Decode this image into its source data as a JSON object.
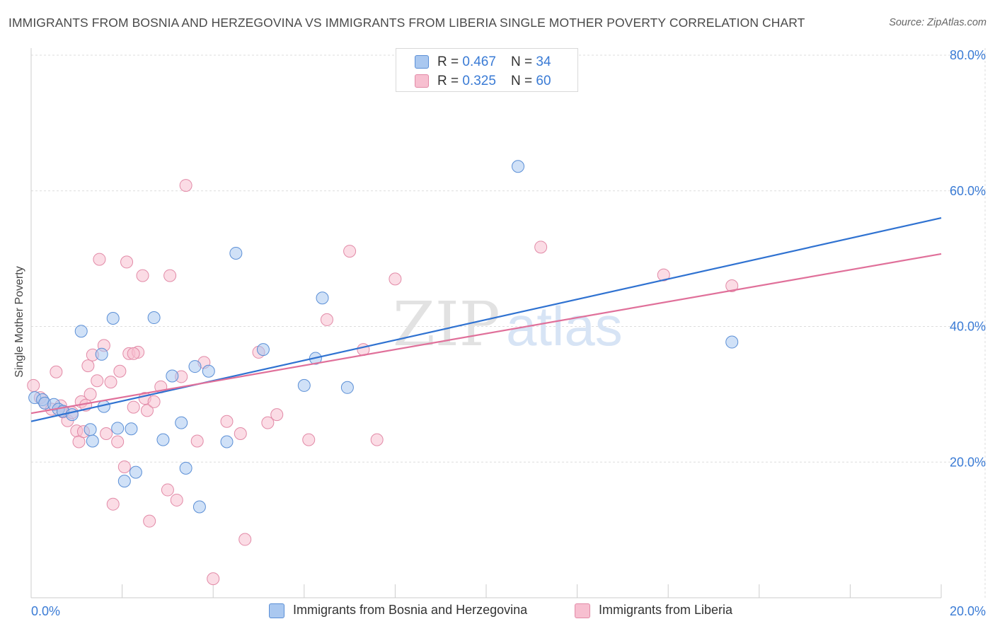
{
  "title": "IMMIGRANTS FROM BOSNIA AND HERZEGOVINA VS IMMIGRANTS FROM LIBERIA SINGLE MOTHER POVERTY CORRELATION CHART",
  "source": "Source: ZipAtlas.com",
  "watermark": {
    "part1": "ZIP",
    "part2": "atlas"
  },
  "legend": {
    "rows": [
      {
        "r_label": "R = ",
        "r_value": "0.467",
        "n_label": "N = ",
        "n_value": "34"
      },
      {
        "r_label": "R = ",
        "r_value": "0.325",
        "n_label": "N = ",
        "n_value": "60"
      }
    ]
  },
  "chart_data": {
    "type": "scatter",
    "title": "IMMIGRANTS FROM BOSNIA AND HERZEGOVINA VS IMMIGRANTS FROM LIBERIA SINGLE MOTHER POVERTY CORRELATION CHART",
    "ylabel": "Single Mother Poverty",
    "xlabel": "",
    "xlim": [
      0,
      20
    ],
    "ylim": [
      0,
      80
    ],
    "x_tick_labels": [
      "0.0%",
      "20.0%"
    ],
    "y_ticks": [
      20,
      40,
      60,
      80
    ],
    "y_tick_labels": [
      "20.0%",
      "40.0%",
      "60.0%",
      "80.0%"
    ],
    "colors": {
      "bosnia_fill": "#aac8f0",
      "bosnia_stroke": "#5b8fd6",
      "bosnia_line": "#2f72d1",
      "liberia_fill": "#f7bfd0",
      "liberia_stroke": "#e28aa7",
      "liberia_line": "#e0709a",
      "tick_label": "#3a7bd5",
      "grid": "#dddddd"
    },
    "series": [
      {
        "name": "Immigrants from Bosnia and Herzegovina",
        "R": 0.467,
        "N": 34,
        "trend": {
          "x": [
            0,
            20
          ],
          "y": [
            26.0,
            56.0
          ]
        },
        "points": [
          [
            0.08,
            29.5
          ],
          [
            0.25,
            29.2
          ],
          [
            0.3,
            28.7
          ],
          [
            0.5,
            28.5
          ],
          [
            0.6,
            27.8
          ],
          [
            0.7,
            27.5
          ],
          [
            0.9,
            27.0
          ],
          [
            1.1,
            39.3
          ],
          [
            1.3,
            24.8
          ],
          [
            1.35,
            23.1
          ],
          [
            1.6,
            28.2
          ],
          [
            1.8,
            41.2
          ],
          [
            1.9,
            25.0
          ],
          [
            2.05,
            17.2
          ],
          [
            2.2,
            24.9
          ],
          [
            2.3,
            18.5
          ],
          [
            2.7,
            41.3
          ],
          [
            2.9,
            23.3
          ],
          [
            3.1,
            32.7
          ],
          [
            3.3,
            25.8
          ],
          [
            3.4,
            19.1
          ],
          [
            3.6,
            34.1
          ],
          [
            3.7,
            13.4
          ],
          [
            3.9,
            33.4
          ],
          [
            4.3,
            23.0
          ],
          [
            4.5,
            50.8
          ],
          [
            5.1,
            36.6
          ],
          [
            6.0,
            31.3
          ],
          [
            6.25,
            35.3
          ],
          [
            6.4,
            44.2
          ],
          [
            6.95,
            31.0
          ],
          [
            10.7,
            63.6
          ],
          [
            15.4,
            37.7
          ],
          [
            1.55,
            35.9
          ]
        ]
      },
      {
        "name": "Immigrants from Liberia",
        "R": 0.325,
        "N": 60,
        "trend": {
          "x": [
            0,
            20
          ],
          "y": [
            27.2,
            50.7
          ]
        },
        "points": [
          [
            0.05,
            31.3
          ],
          [
            0.2,
            29.5
          ],
          [
            0.3,
            28.7
          ],
          [
            0.45,
            27.8
          ],
          [
            0.55,
            33.3
          ],
          [
            0.65,
            28.3
          ],
          [
            0.7,
            27.4
          ],
          [
            0.8,
            26.1
          ],
          [
            0.9,
            27.3
          ],
          [
            1.0,
            24.6
          ],
          [
            1.05,
            23.0
          ],
          [
            1.1,
            28.9
          ],
          [
            1.15,
            24.5
          ],
          [
            1.2,
            28.4
          ],
          [
            1.25,
            34.2
          ],
          [
            1.3,
            30.0
          ],
          [
            1.35,
            35.8
          ],
          [
            1.45,
            32.0
          ],
          [
            1.5,
            49.9
          ],
          [
            1.6,
            37.2
          ],
          [
            1.65,
            24.2
          ],
          [
            1.75,
            31.8
          ],
          [
            1.8,
            13.8
          ],
          [
            1.9,
            23.0
          ],
          [
            1.95,
            33.4
          ],
          [
            2.05,
            19.3
          ],
          [
            2.1,
            49.5
          ],
          [
            2.15,
            36.0
          ],
          [
            2.25,
            28.1
          ],
          [
            2.35,
            36.2
          ],
          [
            2.45,
            47.5
          ],
          [
            2.5,
            29.4
          ],
          [
            2.55,
            27.6
          ],
          [
            2.6,
            11.3
          ],
          [
            2.7,
            28.9
          ],
          [
            2.85,
            31.1
          ],
          [
            3.0,
            15.9
          ],
          [
            3.05,
            47.5
          ],
          [
            3.2,
            14.4
          ],
          [
            3.3,
            32.6
          ],
          [
            3.4,
            60.8
          ],
          [
            3.65,
            23.1
          ],
          [
            3.8,
            34.7
          ],
          [
            4.0,
            2.8
          ],
          [
            4.3,
            26.0
          ],
          [
            4.6,
            24.2
          ],
          [
            4.7,
            8.6
          ],
          [
            5.0,
            36.2
          ],
          [
            5.2,
            25.8
          ],
          [
            5.4,
            27.0
          ],
          [
            6.1,
            23.3
          ],
          [
            6.5,
            41.0
          ],
          [
            7.0,
            51.1
          ],
          [
            7.3,
            36.6
          ],
          [
            7.6,
            23.3
          ],
          [
            8.0,
            47.0
          ],
          [
            11.2,
            51.7
          ],
          [
            13.9,
            47.6
          ],
          [
            15.4,
            46.0
          ],
          [
            2.25,
            36.0
          ]
        ]
      }
    ]
  }
}
